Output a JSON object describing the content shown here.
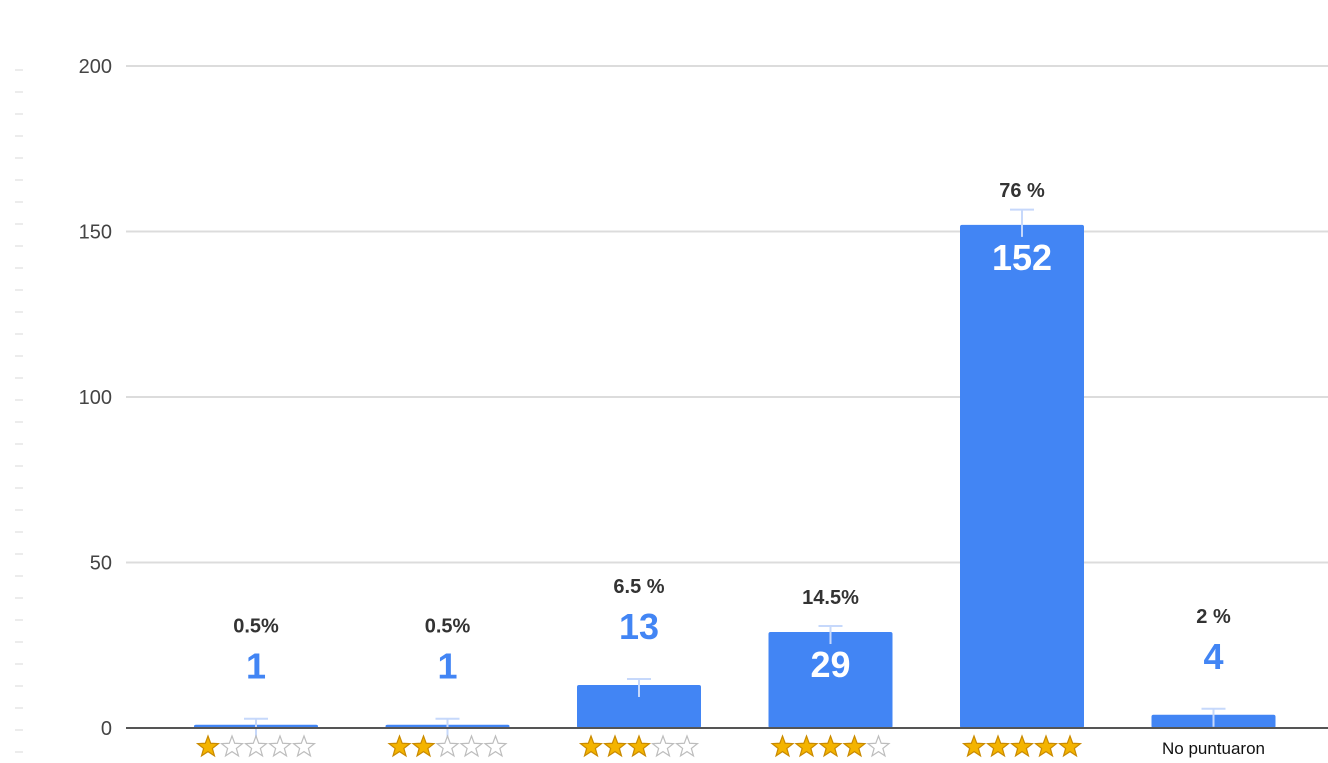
{
  "chart_data": {
    "type": "bar",
    "title": "",
    "xlabel": "",
    "ylabel": "",
    "ylim": [
      0,
      200
    ],
    "yticks": [
      0,
      50,
      100,
      150,
      200
    ],
    "grid": true,
    "bar_color": "#4285f4",
    "label_color_outside": "#4285f4",
    "label_color_inside": "#ffffff",
    "star_fill_color": "#f4b400",
    "star_empty_color": "#bdbdbd",
    "categories": [
      {
        "stars": 1,
        "label": ""
      },
      {
        "stars": 2,
        "label": ""
      },
      {
        "stars": 3,
        "label": ""
      },
      {
        "stars": 4,
        "label": ""
      },
      {
        "stars": 5,
        "label": ""
      },
      {
        "stars": 0,
        "label": "No puntuaron"
      }
    ],
    "values": [
      1,
      1,
      13,
      29,
      152,
      4
    ],
    "value_labels": [
      "1",
      "1",
      "13",
      "29",
      "152",
      "4"
    ],
    "percent_labels": [
      "0.5%",
      "0.5%",
      "6.5 %",
      "14.5%",
      "76 %",
      "2 %"
    ]
  }
}
